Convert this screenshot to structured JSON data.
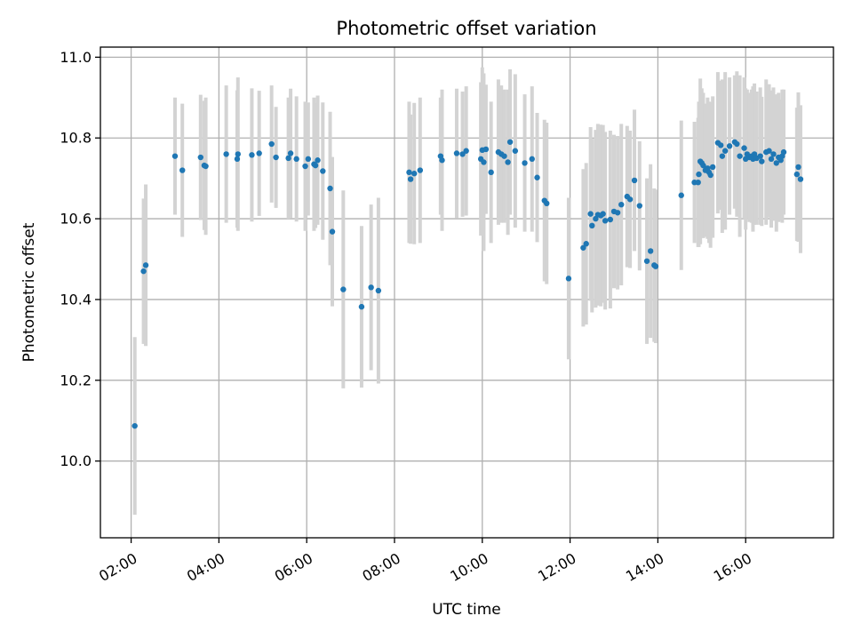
{
  "chart_data": {
    "type": "scatter",
    "title": "Photometric offset variation",
    "xlabel": "UTC time",
    "ylabel": "Photometric offset",
    "x_ticks": [
      "02:00",
      "04:00",
      "06:00",
      "08:00",
      "10:00",
      "12:00",
      "14:00",
      "16:00"
    ],
    "y_ticks": [
      "10.0",
      "10.2",
      "10.4",
      "10.6",
      "10.8",
      "11.0"
    ],
    "xlim": [
      "01:18",
      "18:00"
    ],
    "ylim": [
      9.81,
      11.025
    ],
    "grid": true,
    "colors": {
      "point": "#1f77b4",
      "errorbar": "#d3d3d3"
    },
    "series": [
      {
        "x": [
          "02:05",
          "02:17",
          "02:20",
          "03:00",
          "03:10",
          "03:35",
          "03:40",
          "03:42",
          "04:10",
          "04:25",
          "04:26",
          "04:45",
          "04:55",
          "05:12",
          "05:18",
          "05:35",
          "05:38",
          "05:46",
          "05:58",
          "06:02",
          "06:10",
          "06:12",
          "06:15",
          "06:22",
          "06:32",
          "06:35",
          "06:50",
          "07:15",
          "07:28",
          "07:38",
          "08:20",
          "08:22",
          "08:27",
          "08:35",
          "09:03",
          "09:05",
          "09:25",
          "09:33",
          "09:38",
          "09:58",
          "10:00",
          "10:02",
          "10:05",
          "10:12",
          "10:22",
          "10:26",
          "10:30",
          "10:35",
          "10:38",
          "10:45",
          "10:58",
          "11:08",
          "11:15",
          "11:25",
          "11:28",
          "11:58",
          "12:18",
          "12:22",
          "12:28",
          "12:30",
          "12:35",
          "12:38",
          "12:42",
          "12:45",
          "12:48",
          "12:55",
          "13:00",
          "13:05",
          "13:10",
          "13:18",
          "13:22",
          "13:28",
          "13:35",
          "13:45",
          "13:50",
          "13:55",
          "13:57",
          "14:32",
          "14:50",
          "14:55",
          "14:56",
          "14:58",
          "15:00",
          "15:02",
          "15:05",
          "15:08",
          "15:10",
          "15:12",
          "15:15",
          "15:22",
          "15:26",
          "15:28",
          "15:32",
          "15:38",
          "15:45",
          "15:48",
          "15:52",
          "15:58",
          "16:00",
          "16:02",
          "16:05",
          "16:08",
          "16:10",
          "16:12",
          "16:15",
          "16:20",
          "16:22",
          "16:28",
          "16:32",
          "16:35",
          "16:38",
          "16:42",
          "16:45",
          "16:48",
          "16:50",
          "16:52",
          "17:10",
          "17:12",
          "17:15"
        ],
        "y": [
          10.087,
          10.47,
          10.485,
          10.755,
          10.72,
          10.752,
          10.732,
          10.73,
          10.76,
          10.748,
          10.76,
          10.758,
          10.762,
          10.785,
          10.752,
          10.75,
          10.762,
          10.748,
          10.73,
          10.748,
          10.735,
          10.732,
          10.745,
          10.718,
          10.675,
          10.568,
          10.425,
          10.382,
          10.43,
          10.422,
          10.715,
          10.698,
          10.712,
          10.72,
          10.755,
          10.745,
          10.762,
          10.76,
          10.768,
          10.748,
          10.77,
          10.74,
          10.772,
          10.715,
          10.765,
          10.76,
          10.755,
          10.74,
          10.79,
          10.768,
          10.738,
          10.748,
          10.702,
          10.645,
          10.638,
          10.452,
          10.528,
          10.538,
          10.612,
          10.583,
          10.6,
          10.61,
          10.608,
          10.612,
          10.595,
          10.598,
          10.618,
          10.615,
          10.635,
          10.655,
          10.648,
          10.695,
          10.632,
          10.495,
          10.52,
          10.485,
          10.482,
          10.658,
          10.69,
          10.69,
          10.71,
          10.742,
          10.738,
          10.732,
          10.72,
          10.725,
          10.715,
          10.708,
          10.728,
          10.788,
          10.782,
          10.755,
          10.768,
          10.78,
          10.79,
          10.785,
          10.755,
          10.775,
          10.748,
          10.76,
          10.752,
          10.755,
          10.748,
          10.76,
          10.75,
          10.755,
          10.742,
          10.765,
          10.768,
          10.748,
          10.76,
          10.738,
          10.752,
          10.745,
          10.755,
          10.765,
          10.71,
          10.728,
          10.698
        ],
        "yerr": [
          0.22,
          0.18,
          0.2,
          0.145,
          0.165,
          0.155,
          0.16,
          0.17,
          0.17,
          0.17,
          0.19,
          0.165,
          0.155,
          0.145,
          0.125,
          0.15,
          0.16,
          0.155,
          0.16,
          0.14,
          0.165,
          0.155,
          0.16,
          0.17,
          0.19,
          0.185,
          0.245,
          0.2,
          0.205,
          0.23,
          0.175,
          0.16,
          0.175,
          0.18,
          0.145,
          0.175,
          0.16,
          0.155,
          0.16,
          0.19,
          0.205,
          0.22,
          0.16,
          0.175,
          0.18,
          0.17,
          0.165,
          0.18,
          0.18,
          0.19,
          0.17,
          0.18,
          0.16,
          0.2,
          0.2,
          0.2,
          0.195,
          0.2,
          0.215,
          0.215,
          0.22,
          0.225,
          0.225,
          0.22,
          0.22,
          0.22,
          0.19,
          0.19,
          0.2,
          0.175,
          0.17,
          0.175,
          0.16,
          0.205,
          0.215,
          0.19,
          0.19,
          0.185,
          0.15,
          0.16,
          0.18,
          0.205,
          0.185,
          0.18,
          0.165,
          0.175,
          0.175,
          0.18,
          0.175,
          0.175,
          0.16,
          0.19,
          0.195,
          0.17,
          0.165,
          0.18,
          0.2,
          0.175,
          0.175,
          0.16,
          0.16,
          0.165,
          0.18,
          0.175,
          0.165,
          0.17,
          0.16,
          0.18,
          0.165,
          0.17,
          0.165,
          0.17,
          0.16,
          0.15,
          0.165,
          0.155,
          0.165,
          0.185,
          0.183
        ]
      }
    ]
  }
}
